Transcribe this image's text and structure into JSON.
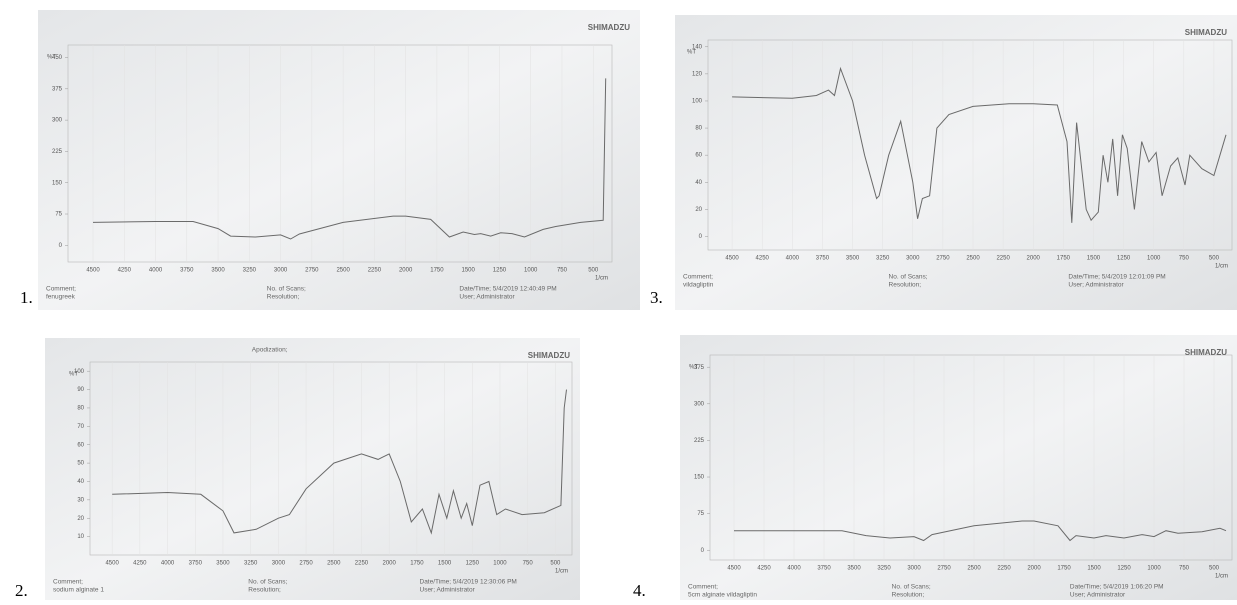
{
  "chart_data": [
    {
      "type": "line",
      "number": "1.",
      "brand": "SHIMADZU",
      "y_label": "%T",
      "x_label": "1/cm",
      "comment_label": "Comment;",
      "comment": "fenugreek",
      "scans": "No. of Scans;",
      "resolution": "Resolution;",
      "datetime": "Date/Time; 5/4/2019 12:40:49 PM",
      "user": "User;     Administrator",
      "x": [
        4500,
        4000,
        3700,
        3500,
        3400,
        3200,
        3000,
        2920,
        2850,
        2500,
        2100,
        2000,
        1800,
        1650,
        1540,
        1450,
        1400,
        1320,
        1240,
        1150,
        1050,
        900,
        800,
        600,
        420,
        400
      ],
      "values": [
        55,
        57,
        57,
        40,
        22,
        20,
        25,
        15,
        27,
        55,
        70,
        70,
        62,
        20,
        32,
        26,
        28,
        22,
        30,
        28,
        20,
        38,
        45,
        55,
        60,
        400
      ],
      "color": "#6a6a6a",
      "xlim": [
        4700,
        350
      ],
      "ylim": [
        -40,
        480
      ],
      "xticks": [
        4500,
        4250,
        4000,
        3750,
        3500,
        3250,
        3000,
        2750,
        2500,
        2250,
        2000,
        1750,
        1500,
        1250,
        1000,
        750,
        500
      ],
      "yticks": [
        0,
        75,
        150,
        225,
        300,
        375,
        450
      ]
    },
    {
      "type": "line",
      "number": "2.",
      "brand": "SHIMADZU",
      "title": "Apodization;",
      "y_label": "%T",
      "x_label": "1/cm",
      "comment_label": "Comment;",
      "comment": "sodium alginate 1",
      "scans": "No. of Scans;",
      "resolution": "Resolution;",
      "datetime": "Date/Time; 5/4/2019 12:30:06 PM",
      "user": "User;     Administrator",
      "x": [
        4500,
        4000,
        3700,
        3500,
        3400,
        3200,
        3000,
        2900,
        2750,
        2500,
        2250,
        2100,
        2000,
        1900,
        1800,
        1700,
        1620,
        1550,
        1480,
        1420,
        1350,
        1300,
        1250,
        1180,
        1100,
        1030,
        950,
        800,
        600,
        450,
        420,
        400
      ],
      "values": [
        33,
        34,
        33,
        24,
        12,
        14,
        20,
        22,
        36,
        50,
        55,
        52,
        55,
        40,
        18,
        25,
        12,
        33,
        20,
        35,
        20,
        28,
        16,
        38,
        40,
        22,
        25,
        22,
        23,
        27,
        80,
        90
      ],
      "color": "#6a6a6a",
      "xlim": [
        4700,
        350
      ],
      "ylim": [
        0,
        105
      ],
      "xticks": [
        4500,
        4250,
        4000,
        3750,
        3500,
        3250,
        3000,
        2750,
        2500,
        2250,
        2000,
        1750,
        1500,
        1250,
        1000,
        750,
        500
      ],
      "yticks": [
        10,
        20,
        30,
        40,
        50,
        60,
        70,
        80,
        90,
        100
      ]
    },
    {
      "type": "line",
      "number": "3.",
      "brand": "SHIMADZU",
      "y_label": "%T",
      "x_label": "1/cm",
      "comment_label": "Comment;",
      "comment": "vildagliptin",
      "scans": "No. of Scans;",
      "resolution": "Resolution;",
      "datetime": "Date/Time; 5/4/2019 12:01:09 PM",
      "user": "User;     Administrator",
      "x": [
        4500,
        4000,
        3800,
        3700,
        3650,
        3600,
        3500,
        3400,
        3300,
        3280,
        3200,
        3100,
        3000,
        2960,
        2920,
        2860,
        2800,
        2700,
        2500,
        2200,
        2000,
        1800,
        1720,
        1680,
        1640,
        1560,
        1520,
        1460,
        1420,
        1380,
        1340,
        1300,
        1260,
        1220,
        1160,
        1100,
        1040,
        980,
        930,
        860,
        800,
        740,
        700,
        600,
        500,
        400
      ],
      "values": [
        103,
        102,
        104,
        108,
        104,
        124,
        100,
        60,
        28,
        30,
        60,
        85,
        40,
        13,
        28,
        30,
        80,
        90,
        96,
        98,
        98,
        97,
        70,
        10,
        84,
        20,
        12,
        18,
        60,
        40,
        72,
        30,
        75,
        65,
        20,
        70,
        55,
        62,
        30,
        52,
        58,
        38,
        60,
        50,
        45,
        75
      ],
      "color": "#6a6a6a",
      "xlim": [
        4700,
        350
      ],
      "ylim": [
        -10,
        145
      ],
      "xticks": [
        4500,
        4250,
        4000,
        3750,
        3500,
        3250,
        3000,
        2750,
        2500,
        2250,
        2000,
        1750,
        1500,
        1250,
        1000,
        750,
        500
      ],
      "yticks": [
        0,
        20,
        40,
        60,
        80,
        100,
        120,
        140
      ]
    },
    {
      "type": "line",
      "number": "4.",
      "brand": "SHIMADZU",
      "y_label": "%T",
      "x_label": "1/cm",
      "comment_label": "Comment;",
      "comment": "5cm alginate vildagliptin",
      "scans": "No. of Scans;",
      "resolution": "Resolution;",
      "datetime": "Date/Time; 5/4/2019 1:06:20 PM",
      "user": "User;     Administrator",
      "x": [
        4500,
        4000,
        3600,
        3400,
        3200,
        3000,
        2920,
        2850,
        2500,
        2100,
        2000,
        1800,
        1700,
        1650,
        1500,
        1400,
        1250,
        1100,
        1000,
        900,
        800,
        600,
        450,
        400
      ],
      "values": [
        40,
        40,
        40,
        30,
        25,
        28,
        20,
        32,
        50,
        60,
        60,
        50,
        20,
        30,
        25,
        30,
        25,
        32,
        28,
        40,
        35,
        38,
        45,
        40
      ],
      "color": "#6a6a6a",
      "xlim": [
        4700,
        350
      ],
      "ylim": [
        -20,
        400
      ],
      "xticks": [
        4500,
        4250,
        4000,
        3750,
        3500,
        3250,
        3000,
        2750,
        2500,
        2250,
        2000,
        1750,
        1500,
        1250,
        1000,
        750,
        500
      ],
      "yticks": [
        0,
        75,
        150,
        225,
        300,
        375
      ]
    }
  ]
}
